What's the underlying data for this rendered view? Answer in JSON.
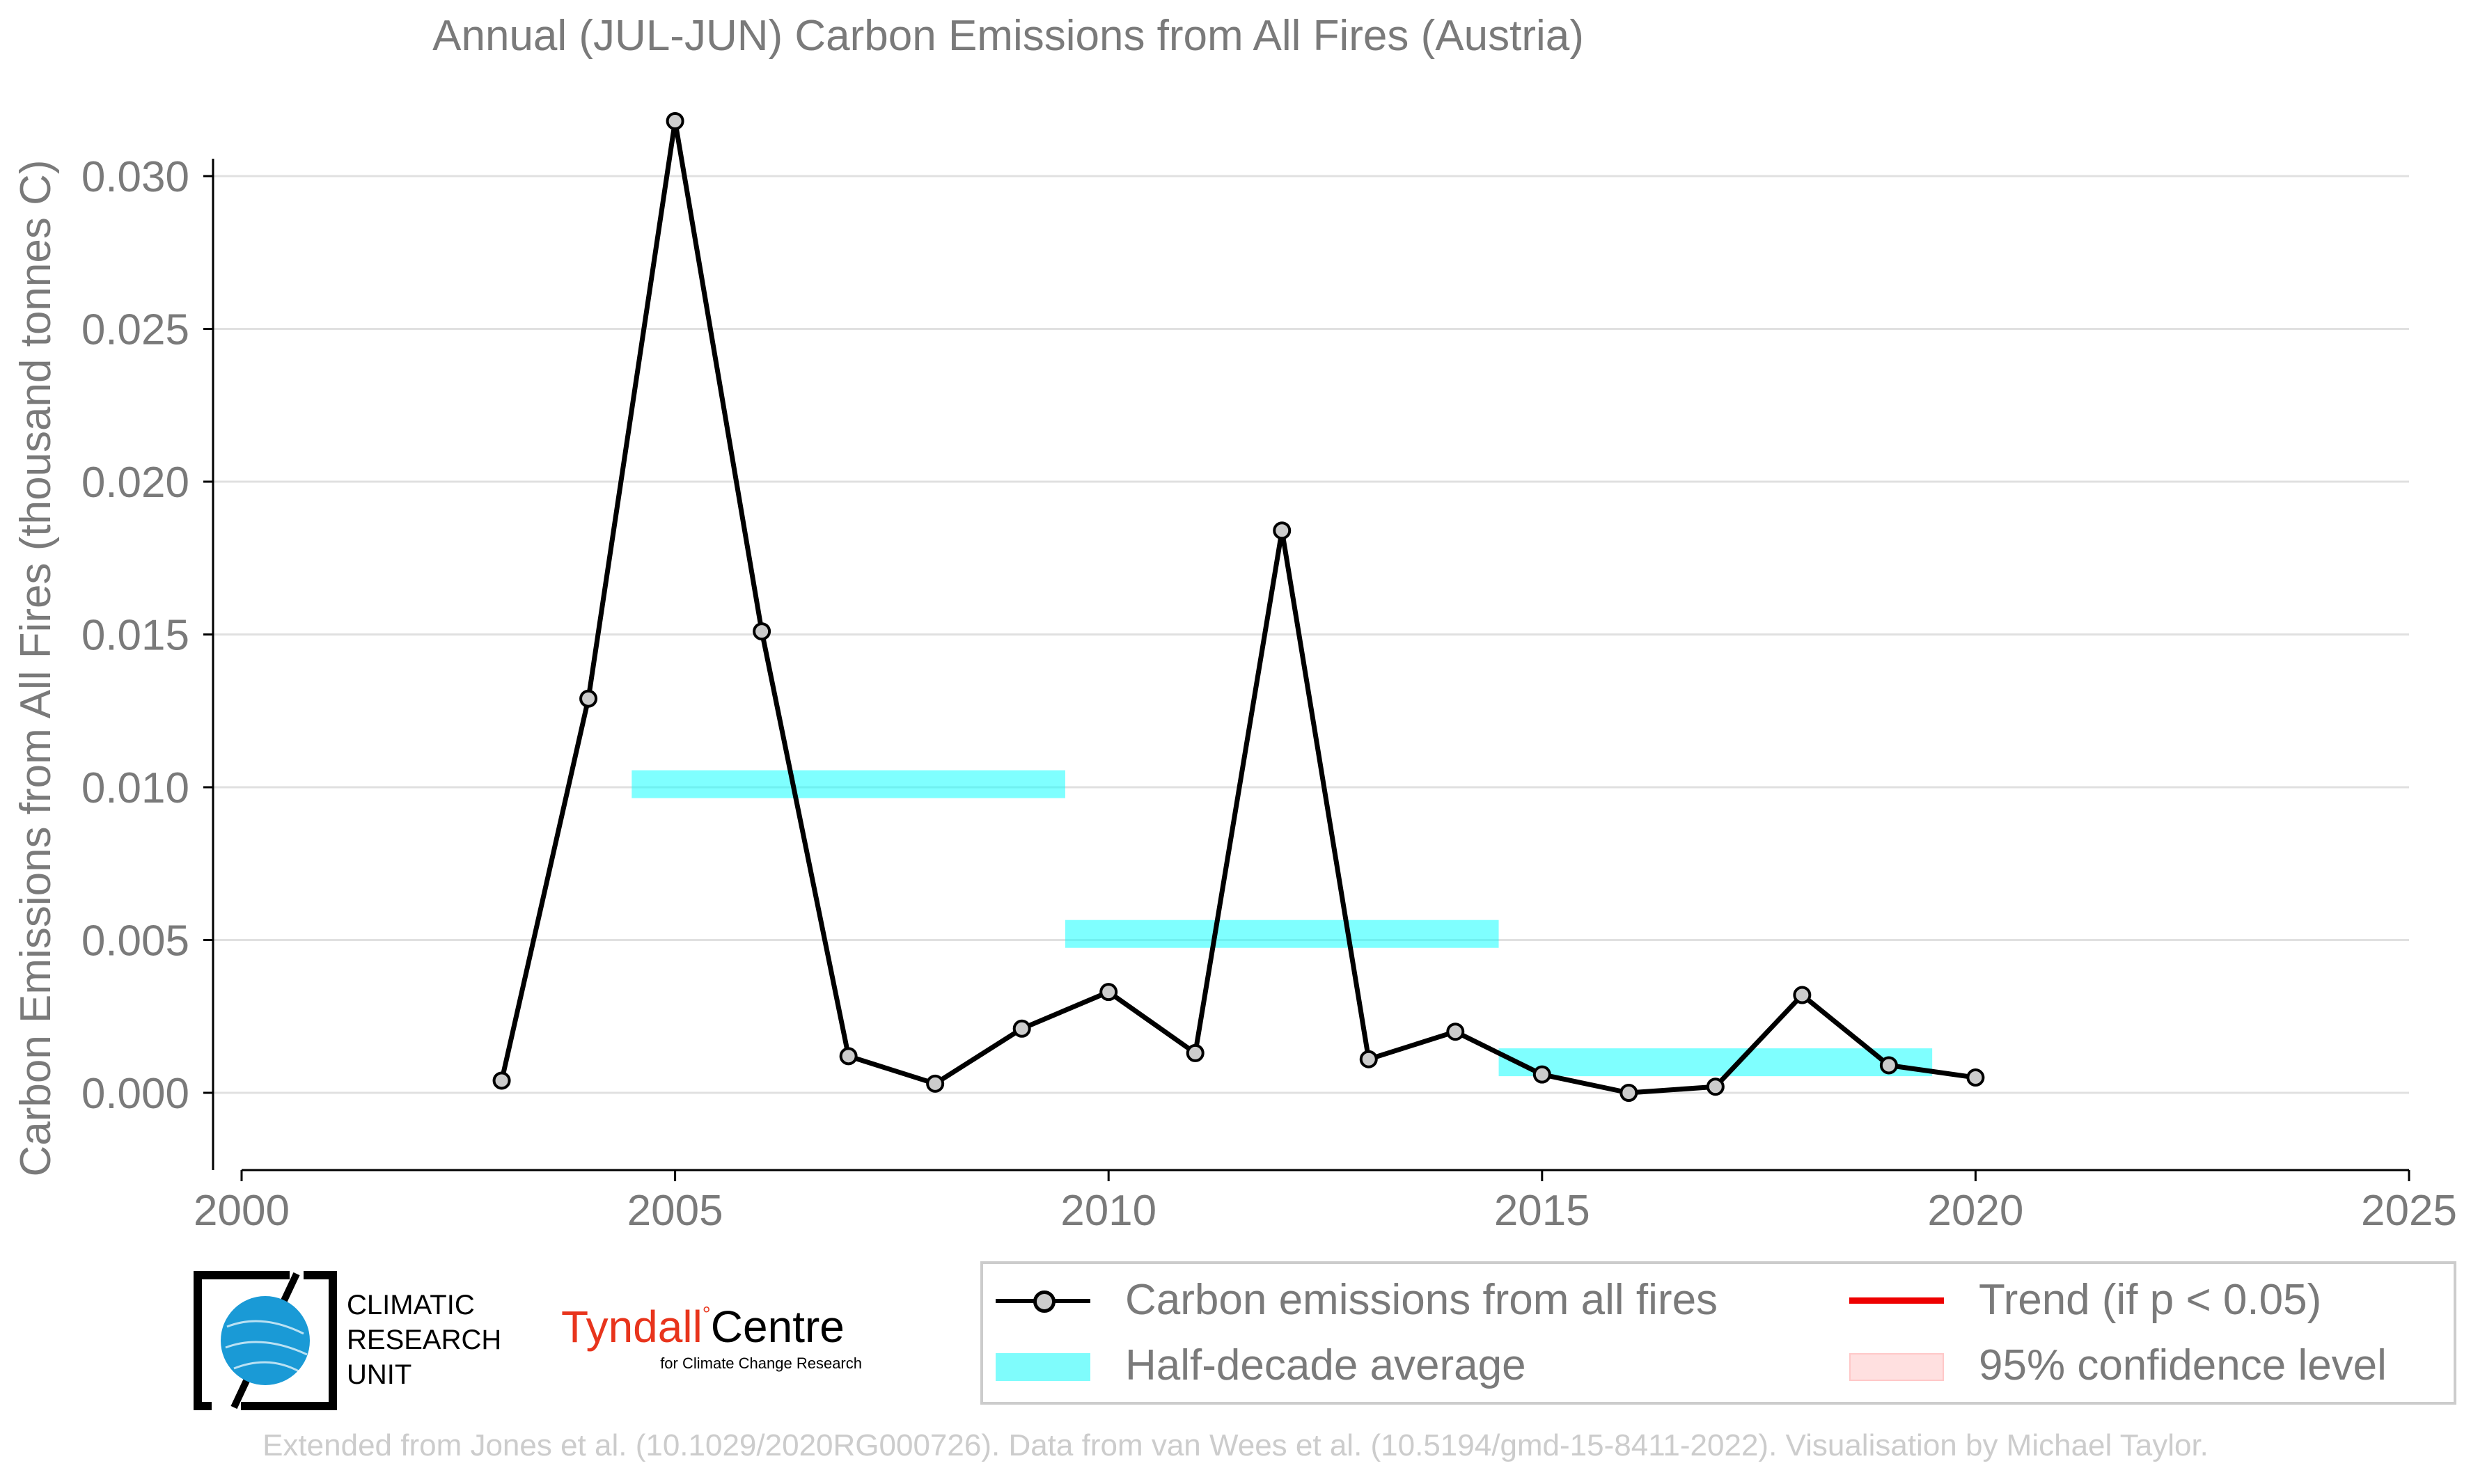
{
  "chart_data": {
    "type": "line",
    "title": "Annual (JUL-JUN) Carbon Emissions from All Fires (Austria)",
    "xlabel": "",
    "ylabel": "Carbon Emissions from All Fires (thousand tonnes C)",
    "xlim": [
      2000,
      2025
    ],
    "ylim": [
      -0.0025,
      0.0325
    ],
    "xticks": [
      2000,
      2005,
      2010,
      2015,
      2020,
      2025
    ],
    "yticks": [
      0.0,
      0.005,
      0.01,
      0.015,
      0.02,
      0.025,
      0.03
    ],
    "ytick_labels": [
      "0.000",
      "0.005",
      "0.010",
      "0.015",
      "0.020",
      "0.025",
      "0.030"
    ],
    "grid": "horizontal",
    "series": [
      {
        "name": "Carbon emissions from all fires",
        "color": "#000000",
        "marker_fill": "#cccccc",
        "x": [
          2003,
          2004,
          2005,
          2006,
          2007,
          2008,
          2009,
          2010,
          2011,
          2012,
          2013,
          2014,
          2015,
          2016,
          2017,
          2018,
          2019,
          2020
        ],
        "y": [
          0.0004,
          0.0129,
          0.0318,
          0.0151,
          0.0012,
          0.0003,
          0.0021,
          0.0033,
          0.0013,
          0.0184,
          0.0011,
          0.002,
          0.0006,
          0.0,
          0.0002,
          0.0032,
          0.0009,
          0.0005
        ]
      }
    ],
    "half_decade_average": {
      "name": "Half-decade average",
      "color": "#00ffff",
      "segments": [
        {
          "x_start": 2004.5,
          "x_end": 2009.5,
          "value": 0.0101
        },
        {
          "x_start": 2009.5,
          "x_end": 2014.5,
          "value": 0.0052
        },
        {
          "x_start": 2014.5,
          "x_end": 2019.5,
          "value": 0.001
        }
      ]
    },
    "legend": {
      "placement": "bottom-right",
      "entries": [
        {
          "label": "Carbon emissions from all fires",
          "symbol": "line-marker",
          "color": "#000000"
        },
        {
          "label": "Trend (if p < 0.05)",
          "symbol": "line",
          "color": "#ee0000"
        },
        {
          "label": "Half-decade average",
          "symbol": "band",
          "color": "#00ffff"
        },
        {
          "label": "95% confidence level",
          "symbol": "band",
          "color": "#ffcccc"
        }
      ]
    }
  },
  "logos": {
    "cru": {
      "line1": "CLIMATIC",
      "line2": "RESEARCH",
      "line3": "UNIT"
    },
    "tyndall": {
      "name": "Tyndall",
      "name2": "Centre",
      "tagline": "for Climate Change Research",
      "color": "#e8341c"
    }
  },
  "footer": "Extended from Jones et al. (10.1029/2020RG000726). Data from van Wees et al. (10.5194/gmd-15-8411-2022). Visualisation by Michael Taylor."
}
